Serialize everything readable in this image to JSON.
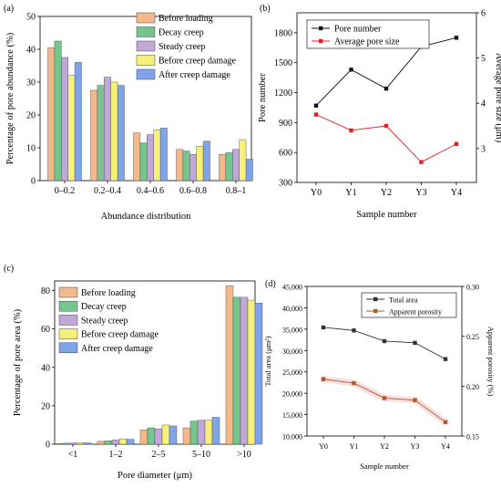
{
  "panels": {
    "a": {
      "label": "(a)"
    },
    "b": {
      "label": "(b)"
    },
    "c": {
      "label": "(c)"
    },
    "d": {
      "label": "(d)"
    }
  },
  "colors": {
    "before_loading": "#f4b98a",
    "decay_creep": "#76c58f",
    "steady_creep": "#c0a9d8",
    "before_creep_damage": "#f6f07a",
    "after_creep_damage": "#7fa4ea",
    "total_area": "#333333",
    "apparent_porosity": "#b05a2a",
    "pore_number": "#111111",
    "average_pore_size": "#e02020"
  },
  "chart_data": [
    {
      "id": "a",
      "type": "bar",
      "title": "",
      "xlabel": "Abundance distribution",
      "ylabel": "Percentage of pore abundance (%)",
      "ylim": [
        0,
        50
      ],
      "yticks": [
        0,
        10,
        20,
        30,
        40,
        50
      ],
      "categories": [
        "0–0.2",
        "0.2–0.4",
        "0.4–0.6",
        "0.6–0.8",
        "0.8–1"
      ],
      "legend_position": "top-right",
      "grid": false,
      "series": [
        {
          "name": "Before loading",
          "values": [
            40.5,
            27.5,
            14.5,
            9.5,
            8
          ]
        },
        {
          "name": "Decay creep",
          "values": [
            42.5,
            29,
            11.5,
            9,
            8.5
          ]
        },
        {
          "name": "Steady creep",
          "values": [
            37.5,
            31.5,
            14,
            8,
            9.5
          ]
        },
        {
          "name": "Before creep damage",
          "values": [
            32,
            30,
            15.5,
            10.5,
            12.5
          ]
        },
        {
          "name": "After creep damage",
          "values": [
            36,
            29,
            16,
            12,
            6.5
          ]
        }
      ]
    },
    {
      "id": "b",
      "type": "line",
      "title": "",
      "xlabel": "Sample number",
      "ylabel": "Pore number",
      "y2label": "Average pore size (μm)",
      "categories": [
        "Y0",
        "Y1",
        "Y2",
        "Y3",
        "Y4"
      ],
      "ylim": [
        300,
        2000
      ],
      "yticks": [
        300,
        600,
        900,
        1200,
        1500,
        1800
      ],
      "y2lim": [
        2.25,
        6
      ],
      "y2ticks": [
        3,
        4,
        5,
        6
      ],
      "legend_position": "top-left",
      "grid": false,
      "series": [
        {
          "name": "Pore number",
          "axis": "left",
          "values": [
            1070,
            1430,
            1240,
            1660,
            1750
          ]
        },
        {
          "name": "Average pore size",
          "axis": "right",
          "values": [
            3.75,
            3.4,
            3.5,
            2.7,
            3.1
          ]
        }
      ]
    },
    {
      "id": "c",
      "type": "bar",
      "title": "",
      "xlabel": "Pore diameter (μm)",
      "ylabel": "Percentage of pore area (%)",
      "ylim": [
        0,
        85
      ],
      "yticks": [
        0,
        20,
        40,
        60,
        80
      ],
      "categories": [
        "<1",
        "1–2",
        "2–5",
        "5–10",
        ">10"
      ],
      "legend_position": "top-left",
      "grid": false,
      "series": [
        {
          "name": "Before loading",
          "values": [
            0.4,
            1.5,
            7.5,
            8.5,
            82.5
          ]
        },
        {
          "name": "Decay creep",
          "values": [
            0.5,
            1.8,
            8.5,
            12,
            76.5
          ]
        },
        {
          "name": "Steady creep",
          "values": [
            0.6,
            2.2,
            8,
            12.5,
            76.5
          ]
        },
        {
          "name": "Before creep damage",
          "values": [
            0.7,
            2.8,
            10,
            12.5,
            75
          ]
        },
        {
          "name": "After creep damage",
          "values": [
            0.7,
            2.5,
            9.5,
            14,
            73.5
          ]
        }
      ]
    },
    {
      "id": "d",
      "type": "line",
      "title": "",
      "xlabel": "Sample number",
      "ylabel": "Total area (μm²)",
      "y2label": "Apparent porosity (%)",
      "categories": [
        "Y0",
        "Y1",
        "Y2",
        "Y3",
        "Y4"
      ],
      "ylim": [
        10000,
        45000
      ],
      "yticks": [
        10000,
        15000,
        20000,
        25000,
        30000,
        35000,
        40000,
        45000
      ],
      "ytick_labels": [
        "10,000",
        "15,000",
        "20,000",
        "25,000",
        "30,000",
        "35,000",
        "40,000",
        "45,000"
      ],
      "y2lim": [
        0.15,
        0.3
      ],
      "y2ticks": [
        0.15,
        0.2,
        0.25,
        0.3
      ],
      "y2tick_labels": [
        "0.15",
        "0.20",
        "0.25",
        "0.30"
      ],
      "legend_position": "top-center",
      "grid": false,
      "series": [
        {
          "name": "Total area",
          "axis": "left",
          "values": [
            35400,
            34700,
            32200,
            31800,
            28000
          ]
        },
        {
          "name": "Apparent porosity",
          "axis": "right",
          "values": [
            0.207,
            0.203,
            0.188,
            0.186,
            0.164
          ]
        }
      ]
    }
  ]
}
